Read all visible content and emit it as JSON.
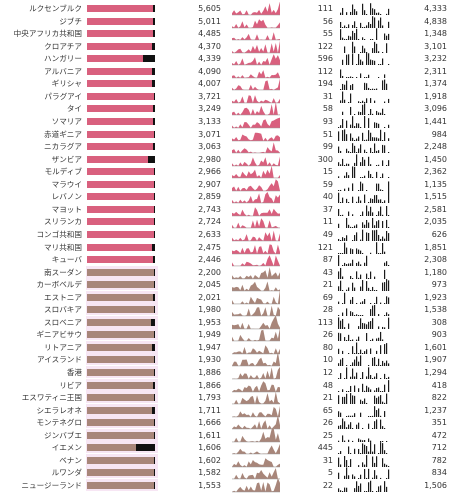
{
  "colors": {
    "pink": "#d9607e",
    "tan": "#a8867a",
    "tail": "#111111",
    "lilac": "#f7e6f4"
  },
  "rows": [
    {
      "name": "ルクセンブルク",
      "a": "5,605",
      "b": "111",
      "c": "4,333",
      "fill": 0.97,
      "tail": 0.03,
      "mode": "pink"
    },
    {
      "name": "ジブチ",
      "a": "5,011",
      "b": "56",
      "c": "4,838",
      "fill": 0.97,
      "tail": 0.03,
      "mode": "pink"
    },
    {
      "name": "中央アフリカ共和国",
      "a": "4,485",
      "b": "55",
      "c": "1,348",
      "fill": 0.97,
      "tail": 0.03,
      "mode": "pink"
    },
    {
      "name": "クロアチア",
      "a": "4,370",
      "b": "122",
      "c": "3,101",
      "fill": 0.96,
      "tail": 0.04,
      "mode": "pink"
    },
    {
      "name": "ハンガリー",
      "a": "4,339",
      "b": "596",
      "c": "3,232",
      "fill": 0.83,
      "tail": 0.17,
      "mode": "pink"
    },
    {
      "name": "アルバニア",
      "a": "4,090",
      "b": "112",
      "c": "2,311",
      "fill": 0.96,
      "tail": 0.04,
      "mode": "pink"
    },
    {
      "name": "ギリシャ",
      "a": "4,007",
      "b": "194",
      "c": "1,374",
      "fill": 0.95,
      "tail": 0.05,
      "mode": "pink"
    },
    {
      "name": "パラグアイ",
      "a": "3,721",
      "b": "31",
      "c": "1,918",
      "fill": 0.98,
      "tail": 0.02,
      "mode": "pink"
    },
    {
      "name": "タイ",
      "a": "3,249",
      "b": "58",
      "c": "3,096",
      "fill": 0.97,
      "tail": 0.03,
      "mode": "pink"
    },
    {
      "name": "ソマリア",
      "a": "3,133",
      "b": "93",
      "c": "1,441",
      "fill": 0.97,
      "tail": 0.03,
      "mode": "pink"
    },
    {
      "name": "赤道ギニア",
      "a": "3,071",
      "b": "51",
      "c": "984",
      "fill": 0.98,
      "tail": 0.02,
      "mode": "pink"
    },
    {
      "name": "ニカラグア",
      "a": "3,063",
      "b": "99",
      "c": "2,248",
      "fill": 0.97,
      "tail": 0.03,
      "mode": "pink"
    },
    {
      "name": "ザンビア",
      "a": "2,980",
      "b": "300",
      "c": "1,450",
      "fill": 0.9,
      "tail": 0.1,
      "mode": "pink"
    },
    {
      "name": "モルディブ",
      "a": "2,966",
      "b": "15",
      "c": "2,362",
      "fill": 0.99,
      "tail": 0.01,
      "mode": "pink"
    },
    {
      "name": "マラウイ",
      "a": "2,907",
      "b": "59",
      "c": "1,135",
      "fill": 0.98,
      "tail": 0.02,
      "mode": "pink"
    },
    {
      "name": "レバノン",
      "a": "2,859",
      "b": "40",
      "c": "1,515",
      "fill": 0.98,
      "tail": 0.02,
      "mode": "pink"
    },
    {
      "name": "マヨット",
      "a": "2,743",
      "b": "37",
      "c": "2,581",
      "fill": 0.98,
      "tail": 0.02,
      "mode": "pink"
    },
    {
      "name": "スリランカ",
      "a": "2,724",
      "b": "11",
      "c": "2,035",
      "fill": 0.99,
      "tail": 0.01,
      "mode": "pink"
    },
    {
      "name": "コンゴ共和国",
      "a": "2,633",
      "b": "49",
      "c": "626",
      "fill": 0.98,
      "tail": 0.02,
      "mode": "pink"
    },
    {
      "name": "マリ共和国",
      "a": "2,475",
      "b": "121",
      "c": "1,851",
      "fill": 0.95,
      "tail": 0.05,
      "mode": "pink"
    },
    {
      "name": "キューバ",
      "a": "2,446",
      "b": "87",
      "c": "2,308",
      "fill": 0.97,
      "tail": 0.03,
      "mode": "pink"
    },
    {
      "name": "南スーダン",
      "a": "2,200",
      "b": "43",
      "c": "1,180",
      "fill": 0.98,
      "tail": 0.02,
      "mode": "tan"
    },
    {
      "name": "カーボベルデ",
      "a": "2,045",
      "b": "21",
      "c": "973",
      "fill": 0.99,
      "tail": 0.01,
      "mode": "tan"
    },
    {
      "name": "エストニア",
      "a": "2,021",
      "b": "69",
      "c": "1,923",
      "fill": 0.97,
      "tail": 0.03,
      "mode": "tan"
    },
    {
      "name": "スロバキア",
      "a": "1,980",
      "b": "28",
      "c": "1,538",
      "fill": 0.99,
      "tail": 0.01,
      "mode": "tan"
    },
    {
      "name": "スロベニア",
      "a": "1,953",
      "b": "113",
      "c": "308",
      "fill": 0.94,
      "tail": 0.06,
      "mode": "tan"
    },
    {
      "name": "ギニアビサウ",
      "a": "1,949",
      "b": "26",
      "c": "903",
      "fill": 0.99,
      "tail": 0.01,
      "mode": "tan"
    },
    {
      "name": "リトアニア",
      "a": "1,947",
      "b": "80",
      "c": "1,601",
      "fill": 0.96,
      "tail": 0.04,
      "mode": "tan"
    },
    {
      "name": "アイスランド",
      "a": "1,930",
      "b": "10",
      "c": "1,907",
      "fill": 0.99,
      "tail": 0.01,
      "mode": "tan"
    },
    {
      "name": "香港",
      "a": "1,886",
      "b": "12",
      "c": "1,294",
      "fill": 0.99,
      "tail": 0.01,
      "mode": "tan"
    },
    {
      "name": "リビア",
      "a": "1,866",
      "b": "48",
      "c": "418",
      "fill": 0.97,
      "tail": 0.03,
      "mode": "tan"
    },
    {
      "name": "エスワティニ王国",
      "a": "1,793",
      "b": "21",
      "c": "822",
      "fill": 0.99,
      "tail": 0.01,
      "mode": "tan"
    },
    {
      "name": "シエラレオネ",
      "a": "1,711",
      "b": "65",
      "c": "1,237",
      "fill": 0.96,
      "tail": 0.04,
      "mode": "tan"
    },
    {
      "name": "モンテネグロ",
      "a": "1,666",
      "b": "26",
      "c": "351",
      "fill": 0.98,
      "tail": 0.02,
      "mode": "tan"
    },
    {
      "name": "ジンバブエ",
      "a": "1,611",
      "b": "25",
      "c": "472",
      "fill": 0.98,
      "tail": 0.02,
      "mode": "tan"
    },
    {
      "name": "イエメン",
      "a": "1,606",
      "b": "445",
      "c": "712",
      "fill": 0.72,
      "tail": 0.28,
      "mode": "tan"
    },
    {
      "name": "ベナン",
      "a": "1,602",
      "b": "31",
      "c": "782",
      "fill": 0.98,
      "tail": 0.02,
      "mode": "tan"
    },
    {
      "name": "ルワンダ",
      "a": "1,582",
      "b": "5",
      "c": "834",
      "fill": 0.99,
      "tail": 0.01,
      "mode": "tan"
    },
    {
      "name": "ニュージーランド",
      "a": "1,553",
      "b": "22",
      "c": "1,506",
      "fill": 0.99,
      "tail": 0.01,
      "mode": "tan"
    }
  ]
}
